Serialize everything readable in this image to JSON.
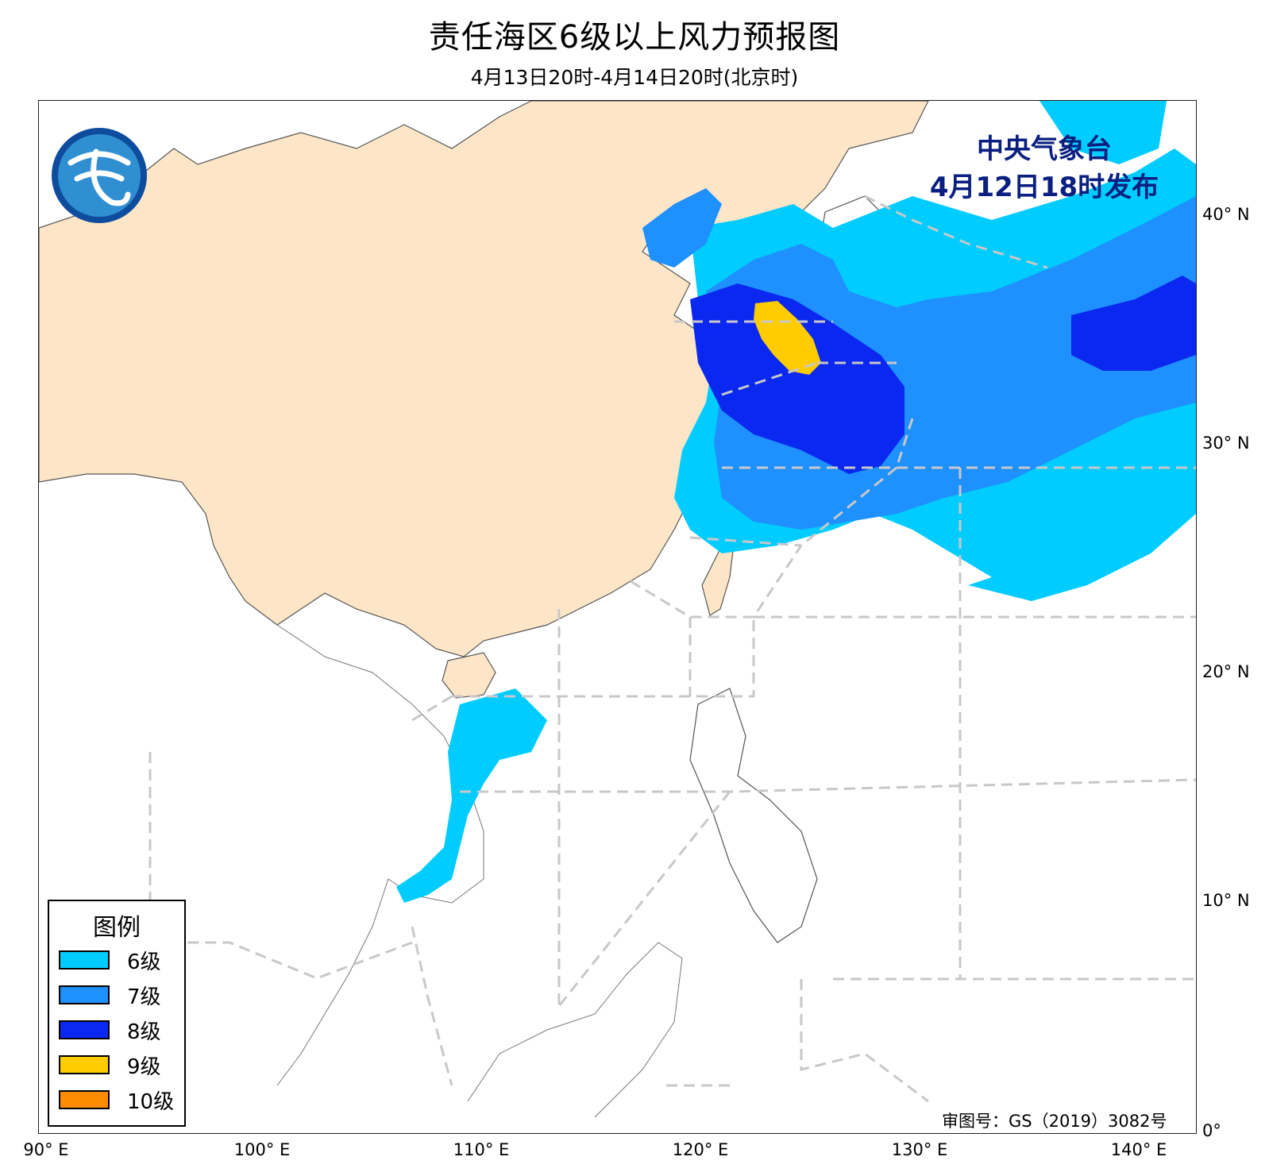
{
  "title": "责任海区6级以上风力预报图",
  "subtitle": "4月13日20时-4月14日20时(北京时)",
  "issuer": {
    "name": "中央气象台",
    "time": "4月12日18时发布"
  },
  "approval": "审图号：GS（2019）3082号",
  "axes": {
    "x_ticks": [
      "90° E",
      "100° E",
      "110° E",
      "120° E",
      "130° E",
      "140° E"
    ],
    "y_ticks": [
      "40° N",
      "30° N",
      "20° N",
      "10° N",
      "0°"
    ]
  },
  "legend": {
    "title": "图例",
    "items": [
      {
        "label": "6级",
        "color": "#00ccff"
      },
      {
        "label": "7级",
        "color": "#1e90ff"
      },
      {
        "label": "8级",
        "color": "#0a28f0"
      },
      {
        "label": "9级",
        "color": "#ffcc00"
      },
      {
        "label": "10级",
        "color": "#ff8c00"
      }
    ]
  },
  "colors": {
    "land_china": "#fde6c8",
    "land_other": "#ffffff",
    "sea": "#ffffff",
    "boundary": "#555555",
    "sea_zone_line": "#c8c8c8",
    "issuer_text": "#0a1f80"
  },
  "icons": {
    "logo": "cma-logo-icon"
  }
}
